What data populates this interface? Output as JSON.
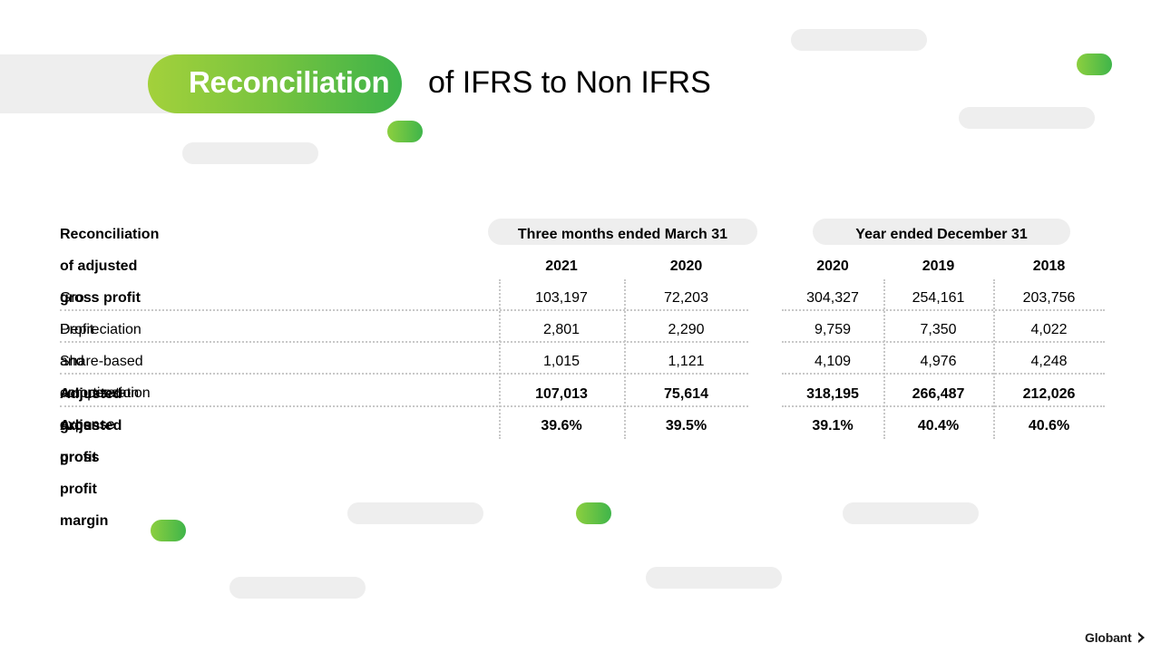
{
  "slide": {
    "title_highlight": "Reconciliation",
    "title_rest": "of IFRS to Non IFRS"
  },
  "table": {
    "heading": "Reconciliation of adjusted gross profit",
    "group_three_months": "Three months ended March 31",
    "group_year": "Year ended December 31",
    "columns": [
      "2021",
      "2020",
      "2020",
      "2019",
      "2018"
    ],
    "rows": [
      {
        "label": "Gross Profit",
        "values": [
          "103,197",
          "72,203",
          "304,327",
          "254,161",
          "203,756"
        ],
        "bold": false
      },
      {
        "label": "Depreciation and amortization expense",
        "values": [
          "2,801",
          "2,290",
          "9,759",
          "7,350",
          "4,022"
        ],
        "bold": false
      },
      {
        "label": "Share-based compensation expense",
        "values": [
          "1,015",
          "1,121",
          "4,109",
          "4,976",
          "4,248"
        ],
        "bold": false
      },
      {
        "label": "Adjusted gross profit",
        "values": [
          "107,013",
          "75,614",
          "318,195",
          "266,487",
          "212,026"
        ],
        "bold": true
      },
      {
        "label": "Adjusted gross profit margin",
        "values": [
          "39.6%",
          "39.5%",
          "39.1%",
          "40.4%",
          "40.6%"
        ],
        "bold": true
      }
    ]
  },
  "footer": {
    "logo_text": "Globant",
    "logo_icon": "chevron-right-icon"
  },
  "colors": {
    "accent_green": "#3db34a",
    "accent_lime": "#a3d13b",
    "decor_gray": "#eeeeee"
  }
}
